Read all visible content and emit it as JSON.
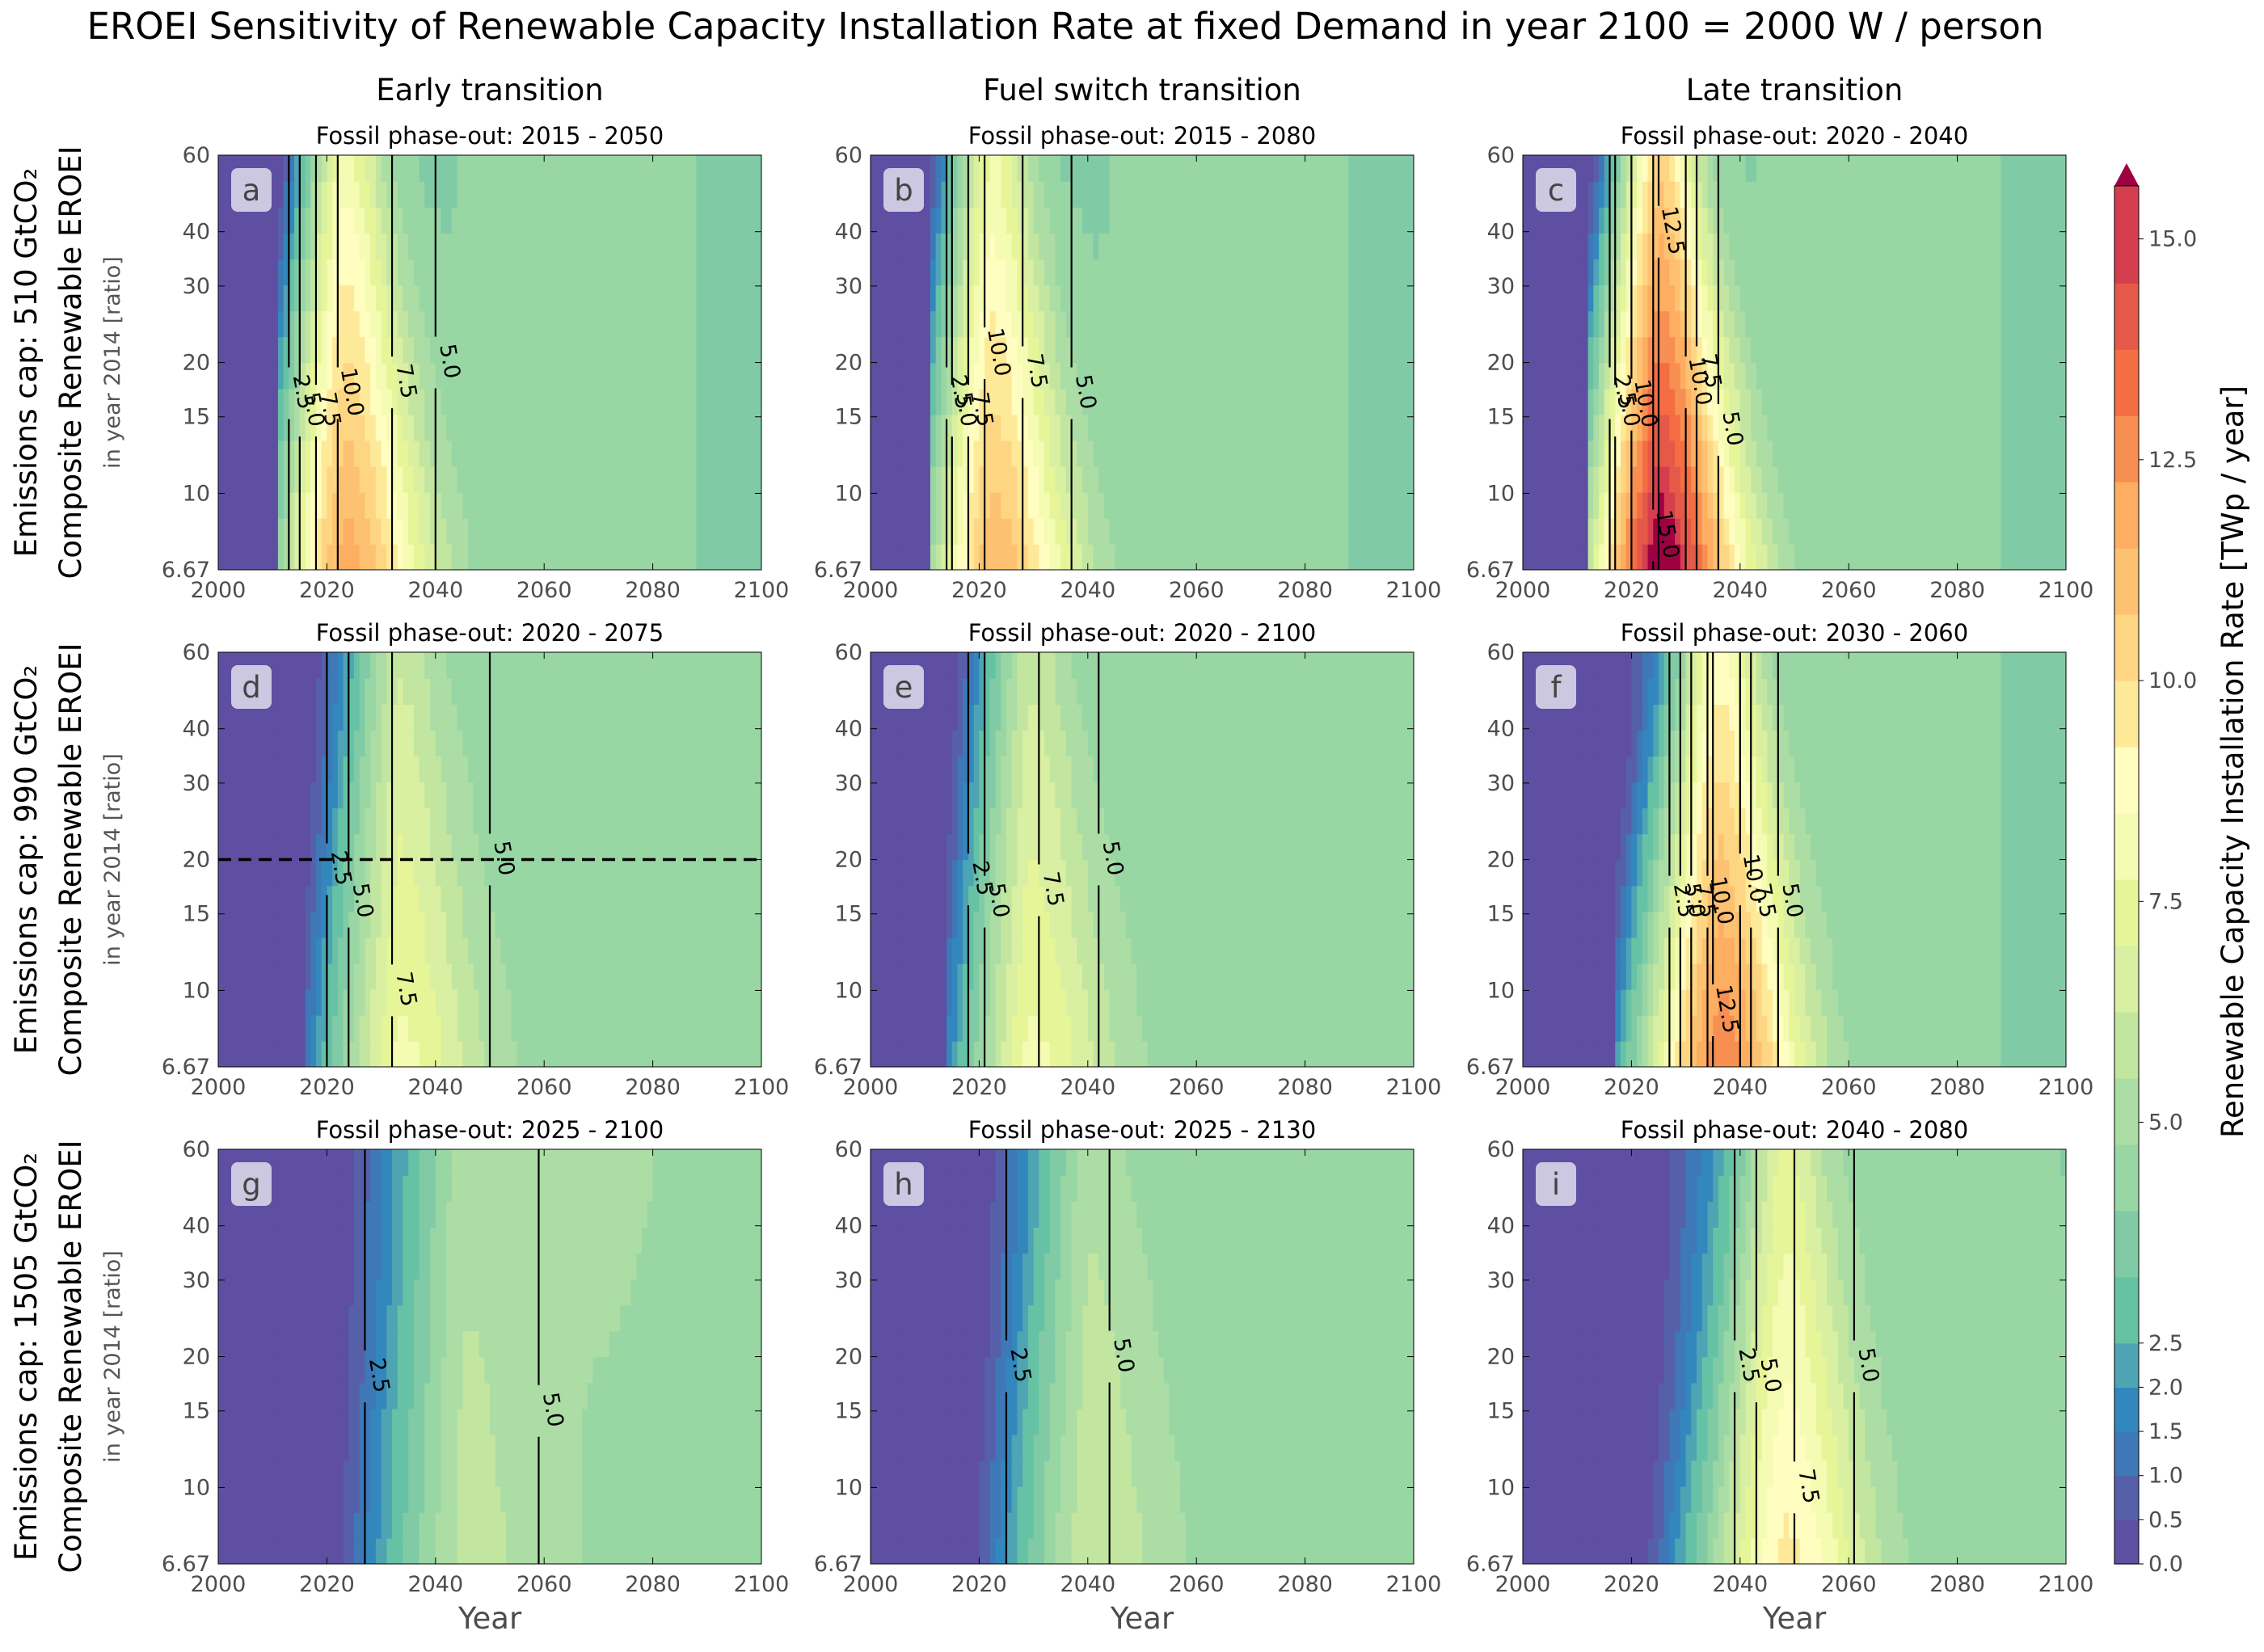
{
  "title": "EROEI Sensitivity of Renewable Capacity Installation Rate at fixed Demand in year 2100 = 2000 W / person",
  "columns": [
    "Early transition",
    "Fuel switch transition",
    "Late transition"
  ],
  "rows": [
    {
      "label": "Emissions cap: 510 GtCO₂",
      "label2": "Composite Renewable EROEI",
      "sub": "in year 2014 [ratio]"
    },
    {
      "label": "Emissions cap: 990 GtCO₂",
      "label2": "Composite Renewable EROEI",
      "sub": "in year 2014 [ratio]"
    },
    {
      "label": "Emissions cap: 1505 GtCO₂",
      "label2": "Composite Renewable EROEI",
      "sub": "in year 2014 [ratio]"
    }
  ],
  "x_axis_label": "Year",
  "colorbar": {
    "label": "Renewable Capacity Installation Rate [TWp / year]",
    "ticks": [
      "0.0",
      "0.5",
      "1.0",
      "1.5",
      "2.0",
      "2.5",
      "5.0",
      "7.5",
      "10.0",
      "12.5",
      "15.0"
    ],
    "colors": [
      "#5e4fa2",
      "#5560a8",
      "#3e78b7",
      "#3288bd",
      "#4fa4b3",
      "#66c2a5",
      "#80cba5",
      "#98d6a4",
      "#abdda4",
      "#c2e6a0",
      "#d9efa1",
      "#e6f598",
      "#f4fbb2",
      "#fffdbf",
      "#fee999",
      "#fed683",
      "#fdc271",
      "#fdae61",
      "#f88f52",
      "#f46d43",
      "#e55949",
      "#d53e4f",
      "#c12650",
      "#9e0142"
    ],
    "extend": "max"
  },
  "chart_data": {
    "type": "heatmap",
    "x_ticks": [
      2000,
      2020,
      2040,
      2060,
      2080,
      2100
    ],
    "y_ticks": [
      "6.67",
      "10",
      "15",
      "20",
      "30",
      "40",
      "60"
    ],
    "y_scale": "log",
    "xlim": [
      2000,
      2100
    ],
    "ylim": [
      6.67,
      60
    ],
    "panels": [
      {
        "letter": "a",
        "subtitle": "Fossil phase-out: 2015 - 2050",
        "peak_year": 2023,
        "peak_value": 12,
        "base_value": 4.0,
        "contours": [
          {
            "level": "2.5",
            "x": 2013,
            "y": 17
          },
          {
            "level": "5.0",
            "x": 2015,
            "y": 15.5
          },
          {
            "level": "7.5",
            "x": 2018,
            "y": 15.5
          },
          {
            "level": "10.0",
            "x": 2022,
            "y": 17
          },
          {
            "level": "7.5",
            "x": 2032,
            "y": 18
          },
          {
            "level": "5.0",
            "x": 2040,
            "y": 20
          }
        ]
      },
      {
        "letter": "b",
        "subtitle": "Fossil phase-out: 2015 - 2080",
        "peak_year": 2022,
        "peak_value": 11.5,
        "base_value": 4.0,
        "contours": [
          {
            "level": "2.5",
            "x": 2014,
            "y": 17
          },
          {
            "level": "5.0",
            "x": 2015,
            "y": 15.5
          },
          {
            "level": "7.5",
            "x": 2018,
            "y": 15.5
          },
          {
            "level": "10.0",
            "x": 2021,
            "y": 21
          },
          {
            "level": "7.5",
            "x": 2028,
            "y": 19
          },
          {
            "level": "5.0",
            "x": 2037,
            "y": 17
          }
        ]
      },
      {
        "letter": "c",
        "subtitle": "Fossil phase-out: 2020 - 2040",
        "peak_year": 2025,
        "peak_value": 16,
        "base_value": 4.0,
        "contours": [
          {
            "level": "2.5",
            "x": 2016,
            "y": 17
          },
          {
            "level": "5.0",
            "x": 2017,
            "y": 15.5
          },
          {
            "level": "10.0",
            "x": 2020,
            "y": 16
          },
          {
            "level": "12.5",
            "x": 2025,
            "y": 40
          },
          {
            "level": "15.0",
            "x": 2024,
            "y": 8
          },
          {
            "level": "10.0",
            "x": 2030,
            "y": 18
          },
          {
            "level": "7.5",
            "x": 2032,
            "y": 19
          },
          {
            "level": "5.0",
            "x": 2036,
            "y": 14
          }
        ]
      },
      {
        "letter": "d",
        "subtitle": "Fossil phase-out: 2020 - 2075",
        "peak_year": 2033,
        "peak_value": 8,
        "base_value": 4.3,
        "dashed_y": 20,
        "contours": [
          {
            "level": "2.5",
            "x": 2020,
            "y": 19
          },
          {
            "level": "5.0",
            "x": 2024,
            "y": 16
          },
          {
            "level": "7.5",
            "x": 2032,
            "y": 10
          },
          {
            "level": "5.0",
            "x": 2050,
            "y": 20
          }
        ]
      },
      {
        "letter": "e",
        "subtitle": "Fossil phase-out: 2020 - 2100",
        "peak_year": 2029,
        "peak_value": 8,
        "base_value": 4.3,
        "contours": [
          {
            "level": "2.5",
            "x": 2018,
            "y": 18
          },
          {
            "level": "5.0",
            "x": 2021,
            "y": 16
          },
          {
            "level": "7.5",
            "x": 2031,
            "y": 17
          },
          {
            "level": "5.0",
            "x": 2042,
            "y": 20
          }
        ]
      },
      {
        "letter": "f",
        "subtitle": "Fossil phase-out: 2030 - 2060",
        "peak_year": 2036,
        "peak_value": 13,
        "base_value": 4.0,
        "contours": [
          {
            "level": "2.5",
            "x": 2027,
            "y": 16
          },
          {
            "level": "5.0",
            "x": 2029,
            "y": 16
          },
          {
            "level": "7.5",
            "x": 2031,
            "y": 16
          },
          {
            "level": "10.0",
            "x": 2034,
            "y": 16
          },
          {
            "level": "12.5",
            "x": 2035,
            "y": 9
          },
          {
            "level": "10.0",
            "x": 2040,
            "y": 18
          },
          {
            "level": "7.5",
            "x": 2042,
            "y": 16
          },
          {
            "level": "5.0",
            "x": 2047,
            "y": 16
          }
        ]
      },
      {
        "letter": "g",
        "subtitle": "Fossil phase-out: 2025 - 2100",
        "peak_year": 2045,
        "peak_value": 5.8,
        "base_value": 4.6,
        "contours": [
          {
            "level": "2.5",
            "x": 2027,
            "y": 18
          },
          {
            "level": "5.0",
            "x": 2059,
            "y": 15
          }
        ]
      },
      {
        "letter": "h",
        "subtitle": "Fossil phase-out: 2025 - 2130",
        "peak_year": 2040,
        "peak_value": 6.2,
        "base_value": 4.3,
        "contours": [
          {
            "level": "2.5",
            "x": 2025,
            "y": 19
          },
          {
            "level": "5.0",
            "x": 2044,
            "y": 20
          }
        ]
      },
      {
        "letter": "i",
        "subtitle": "Fossil phase-out: 2040 - 2080",
        "peak_year": 2048,
        "peak_value": 9.5,
        "base_value": 4.2,
        "contours": [
          {
            "level": "2.5",
            "x": 2039,
            "y": 19
          },
          {
            "level": "5.0",
            "x": 2043,
            "y": 18
          },
          {
            "level": "7.5",
            "x": 2050,
            "y": 10
          },
          {
            "level": "5.0",
            "x": 2061,
            "y": 19
          }
        ]
      }
    ]
  }
}
